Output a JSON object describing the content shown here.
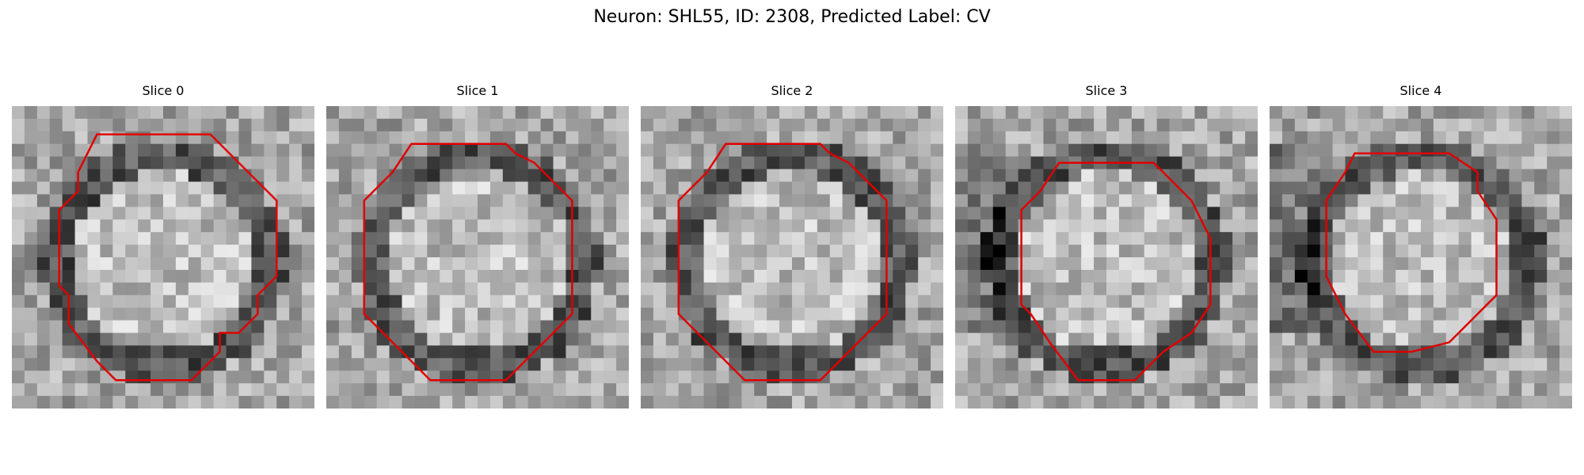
{
  "figure": {
    "title": "Neuron: SHL55, ID: 2308, Predicted Label: CV",
    "contour_color": "#e00000",
    "colormap": "grayscale"
  },
  "panels": [
    {
      "title": "Slice 0",
      "contour": [
        [
          4.5,
          1.5
        ],
        [
          10.5,
          1.5
        ],
        [
          14,
          5
        ],
        [
          14,
          9
        ],
        [
          13,
          10
        ],
        [
          13,
          11
        ],
        [
          12,
          12
        ],
        [
          11,
          12
        ],
        [
          11,
          13
        ],
        [
          9.5,
          14.5
        ],
        [
          5.5,
          14.5
        ],
        [
          4.5,
          13.5
        ],
        [
          3,
          11.5
        ],
        [
          3,
          10
        ],
        [
          2.5,
          9.5
        ],
        [
          2.5,
          5.5
        ],
        [
          3.5,
          4.5
        ],
        [
          3.5,
          3.5
        ]
      ]
    },
    {
      "title": "Slice 1",
      "contour": [
        [
          4.5,
          2
        ],
        [
          9.5,
          2
        ],
        [
          10,
          2.5
        ],
        [
          11,
          3
        ],
        [
          13,
          5
        ],
        [
          13,
          11
        ],
        [
          11,
          13
        ],
        [
          10.5,
          13.5
        ],
        [
          9.5,
          14.5
        ],
        [
          5.5,
          14.5
        ],
        [
          4.5,
          13.5
        ],
        [
          2,
          11
        ],
        [
          2,
          5
        ],
        [
          3.5,
          3.5
        ]
      ]
    },
    {
      "title": "Slice 2",
      "contour": [
        [
          4.5,
          2
        ],
        [
          9.5,
          2
        ],
        [
          10,
          2.5
        ],
        [
          11,
          3
        ],
        [
          13,
          5
        ],
        [
          13,
          11
        ],
        [
          11,
          13
        ],
        [
          10.5,
          13.5
        ],
        [
          9.5,
          14.5
        ],
        [
          5.5,
          14.5
        ],
        [
          4.5,
          13.5
        ],
        [
          2,
          11
        ],
        [
          2,
          5
        ],
        [
          3.5,
          3.5
        ]
      ]
    },
    {
      "title": "Slice 3",
      "contour": [
        [
          5.5,
          3
        ],
        [
          10.5,
          3
        ],
        [
          12.5,
          5
        ],
        [
          13.5,
          7
        ],
        [
          13.5,
          10.5
        ],
        [
          12.5,
          12
        ],
        [
          11,
          13
        ],
        [
          10.5,
          13.5
        ],
        [
          9.5,
          14.5
        ],
        [
          6.5,
          14.5
        ],
        [
          5,
          12.5
        ],
        [
          4,
          11
        ],
        [
          3.5,
          10.5
        ],
        [
          3.5,
          5.5
        ],
        [
          4.5,
          4.5
        ]
      ]
    },
    {
      "title": "Slice 4",
      "contour": [
        [
          4.5,
          2.5
        ],
        [
          9.5,
          2.5
        ],
        [
          11,
          3.5
        ],
        [
          11,
          4.5
        ],
        [
          12,
          6
        ],
        [
          12,
          10
        ],
        [
          11,
          11
        ],
        [
          10,
          12
        ],
        [
          9.5,
          12.5
        ],
        [
          7.5,
          13
        ],
        [
          5.5,
          13
        ],
        [
          4,
          11
        ],
        [
          3,
          9
        ],
        [
          3,
          5
        ],
        [
          4,
          3.5
        ]
      ]
    }
  ]
}
